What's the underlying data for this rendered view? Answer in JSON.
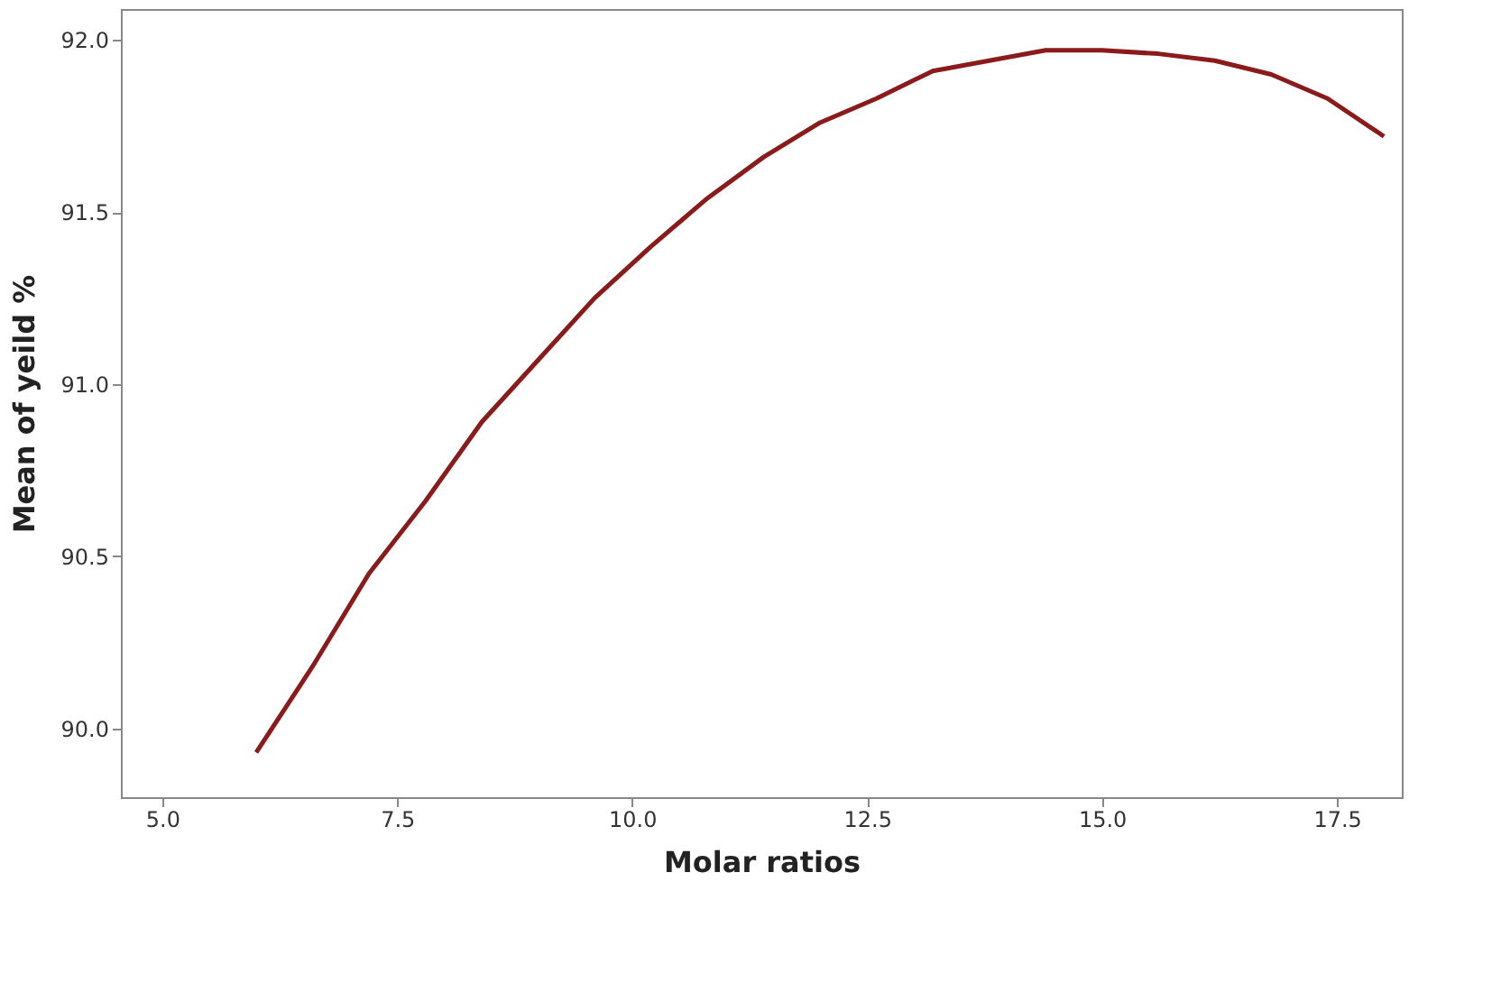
{
  "chart_data": {
    "type": "line",
    "xlabel": "Molar ratios",
    "ylabel": "Mean of yeild %",
    "x": [
      6,
      6.6,
      7.2,
      7.8,
      8.4,
      9.0,
      9.6,
      10.2,
      10.8,
      11.4,
      12.0,
      12.6,
      13.2,
      13.8,
      14.4,
      15.0,
      15.6,
      16.2,
      16.8,
      17.4,
      18.0
    ],
    "series": [
      {
        "color": "#8b1a1a",
        "values": [
          89.93,
          90.18,
          90.45,
          90.66,
          90.89,
          91.07,
          91.25,
          91.4,
          91.54,
          91.66,
          91.76,
          91.83,
          91.91,
          91.94,
          91.97,
          91.97,
          91.96,
          91.94,
          91.9,
          91.83,
          91.72
        ]
      }
    ],
    "xlim": [
      4.56,
      18.19
    ],
    "ylim": [
      89.8,
      92.09
    ],
    "xticks": [
      {
        "value": 5,
        "label": "5.0"
      },
      7.5,
      {
        "value": 10,
        "label": "10.0"
      },
      12.5,
      {
        "value": 15,
        "label": "15.0"
      },
      17.5
    ],
    "yticks": [
      {
        "value": 90,
        "label": "90.0"
      },
      90.5,
      {
        "value": 91,
        "label": "91.0"
      },
      91.5,
      {
        "value": 92,
        "label": "92.0"
      }
    ],
    "grid": false,
    "marker": "none",
    "line_style": "solid"
  }
}
